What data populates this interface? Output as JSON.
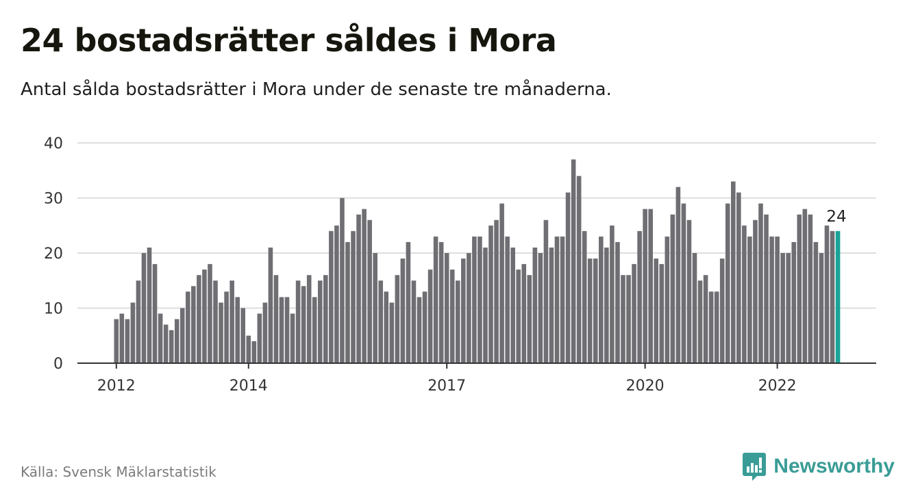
{
  "title": "24 bostadsrätter såldes i Mora",
  "subtitle": "Antal sålda bostadsrätter i Mora under de senaste tre månaderna.",
  "source": "Källa: Svensk Mäklarstatistik",
  "brand": {
    "name": "Newsworthy",
    "icon": "newsworthy-logo-icon"
  },
  "colors": {
    "bar": "#6f6e73",
    "highlight": "#1aa398",
    "grid": "#dedede",
    "axis": "#333333",
    "brand": "#3a9c96"
  },
  "chart_data": {
    "type": "bar",
    "x": [
      "2012-01",
      "2012-02",
      "2012-03",
      "2012-04",
      "2012-05",
      "2012-06",
      "2012-07",
      "2012-08",
      "2012-09",
      "2012-10",
      "2012-11",
      "2012-12",
      "2013-01",
      "2013-02",
      "2013-03",
      "2013-04",
      "2013-05",
      "2013-06",
      "2013-07",
      "2013-08",
      "2013-09",
      "2013-10",
      "2013-11",
      "2013-12",
      "2014-01",
      "2014-02",
      "2014-03",
      "2014-04",
      "2014-05",
      "2014-06",
      "2014-07",
      "2014-08",
      "2014-09",
      "2014-10",
      "2014-11",
      "2014-12",
      "2015-01",
      "2015-02",
      "2015-03",
      "2015-04",
      "2015-05",
      "2015-06",
      "2015-07",
      "2015-08",
      "2015-09",
      "2015-10",
      "2015-11",
      "2015-12",
      "2016-01",
      "2016-02",
      "2016-03",
      "2016-04",
      "2016-05",
      "2016-06",
      "2016-07",
      "2016-08",
      "2016-09",
      "2016-10",
      "2016-11",
      "2016-12",
      "2017-01",
      "2017-02",
      "2017-03",
      "2017-04",
      "2017-05",
      "2017-06",
      "2017-07",
      "2017-08",
      "2017-09",
      "2017-10",
      "2017-11",
      "2017-12",
      "2018-01",
      "2018-02",
      "2018-03",
      "2018-04",
      "2018-05",
      "2018-06",
      "2018-07",
      "2018-08",
      "2018-09",
      "2018-10",
      "2018-11",
      "2018-12",
      "2019-01",
      "2019-02",
      "2019-03",
      "2019-04",
      "2019-05",
      "2019-06",
      "2019-07",
      "2019-08",
      "2019-09",
      "2019-10",
      "2019-11",
      "2019-12",
      "2020-01",
      "2020-02",
      "2020-03",
      "2020-04",
      "2020-05",
      "2020-06",
      "2020-07",
      "2020-08",
      "2020-09",
      "2020-10",
      "2020-11",
      "2020-12",
      "2021-01",
      "2021-02",
      "2021-03",
      "2021-04",
      "2021-05",
      "2021-06",
      "2021-07",
      "2021-08",
      "2021-09",
      "2021-10",
      "2021-11",
      "2021-12",
      "2022-01",
      "2022-02",
      "2022-03",
      "2022-04",
      "2022-05",
      "2022-06",
      "2022-07",
      "2022-08",
      "2022-09",
      "2022-10",
      "2022-11",
      "2022-12"
    ],
    "values": [
      8,
      9,
      8,
      11,
      15,
      20,
      21,
      18,
      9,
      7,
      6,
      8,
      10,
      13,
      14,
      16,
      17,
      18,
      15,
      11,
      13,
      15,
      12,
      10,
      5,
      4,
      9,
      11,
      21,
      16,
      12,
      12,
      9,
      15,
      14,
      16,
      12,
      15,
      16,
      24,
      25,
      30,
      22,
      24,
      27,
      28,
      26,
      20,
      15,
      13,
      11,
      16,
      19,
      22,
      15,
      12,
      13,
      17,
      23,
      22,
      20,
      17,
      15,
      19,
      20,
      23,
      23,
      21,
      25,
      26,
      29,
      23,
      21,
      17,
      18,
      16,
      21,
      20,
      26,
      21,
      23,
      23,
      31,
      37,
      34,
      24,
      19,
      19,
      23,
      21,
      25,
      22,
      16,
      16,
      18,
      24,
      28,
      28,
      19,
      18,
      23,
      27,
      32,
      29,
      26,
      20,
      15,
      16,
      13,
      13,
      19,
      29,
      33,
      31,
      25,
      23,
      26,
      29,
      27,
      23,
      23,
      20,
      20,
      22,
      27,
      28,
      27,
      22,
      20,
      25,
      24,
      24
    ],
    "highlight_index": 131,
    "highlight_label": "24",
    "x_ticks": [
      "2012",
      "2014",
      "2017",
      "2020",
      "2022"
    ],
    "y_ticks": [
      0,
      10,
      20,
      30,
      40
    ],
    "ylim": [
      0,
      40
    ],
    "grid": true,
    "legend": "none"
  }
}
